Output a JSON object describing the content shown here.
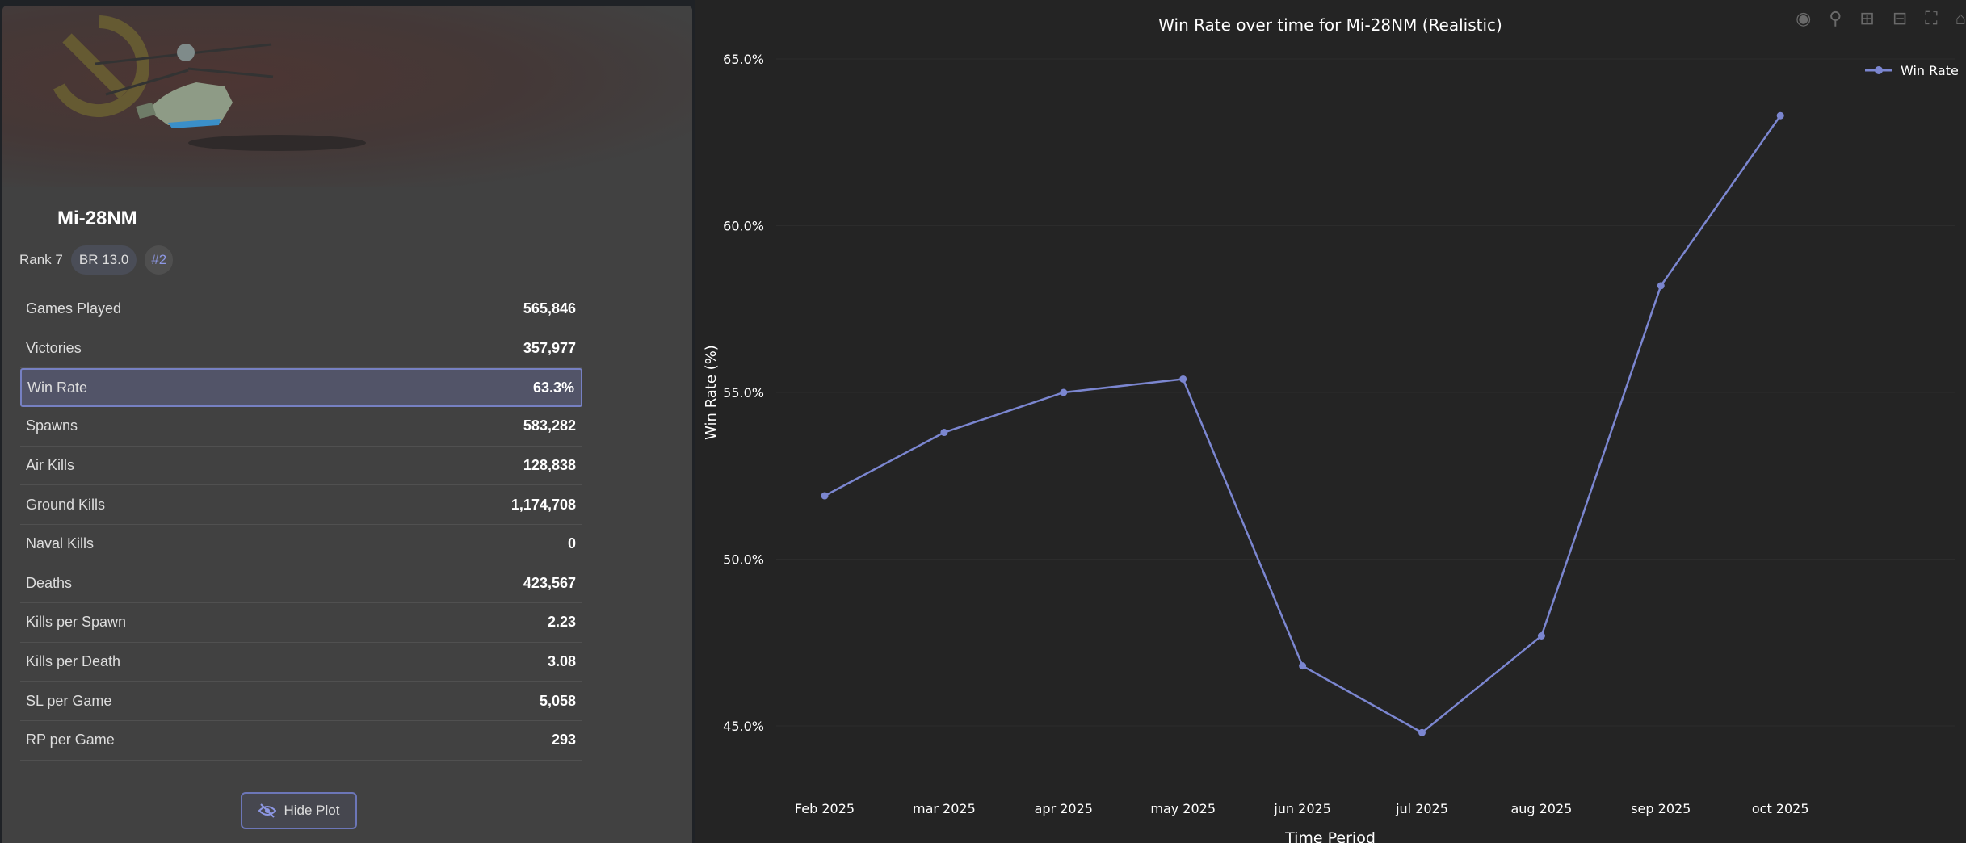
{
  "vehicle": {
    "name": "Mi-28NM",
    "rank": "Rank 7",
    "br": "BR 13.0",
    "tag": "#2"
  },
  "stats": [
    {
      "label": "Games Played",
      "value": "565,846"
    },
    {
      "label": "Victories",
      "value": "357,977"
    },
    {
      "label": "Win Rate",
      "value": "63.3%"
    },
    {
      "label": "Spawns",
      "value": "583,282"
    },
    {
      "label": "Air Kills",
      "value": "128,838"
    },
    {
      "label": "Ground Kills",
      "value": "1,174,708"
    },
    {
      "label": "Naval Kills",
      "value": "0"
    },
    {
      "label": "Deaths",
      "value": "423,567"
    },
    {
      "label": "Kills per Spawn",
      "value": "2.23"
    },
    {
      "label": "Kills per Death",
      "value": "3.08"
    },
    {
      "label": "SL per Game",
      "value": "5,058"
    },
    {
      "label": "RP per Game",
      "value": "293"
    }
  ],
  "hide_plot_label": "Hide Plot",
  "modebar": [
    "camera-icon",
    "zoom-icon",
    "zoom-in-icon",
    "zoom-out-icon",
    "autoscale-icon",
    "home-icon"
  ],
  "chart_data": {
    "type": "line",
    "title": "Win Rate over time for Mi-28NM (Realistic)",
    "xlabel": "Time Period",
    "ylabel": "Win Rate (%)",
    "categories": [
      "Feb 2025",
      "mar 2025",
      "apr 2025",
      "may 2025",
      "jun 2025",
      "jul 2025",
      "aug 2025",
      "sep 2025",
      "oct 2025"
    ],
    "series": [
      {
        "name": "Win Rate",
        "color": "#7b86d0",
        "values": [
          51.9,
          53.8,
          55.0,
          55.4,
          46.8,
          44.8,
          47.7,
          58.2,
          63.3
        ]
      }
    ],
    "yticks": [
      "45.0%",
      "50.0%",
      "55.0%",
      "60.0%",
      "65.0%"
    ],
    "ytick_values": [
      45,
      50,
      55,
      60,
      65
    ],
    "ylim": [
      45,
      65
    ],
    "legend": "top-right",
    "grid": true
  }
}
